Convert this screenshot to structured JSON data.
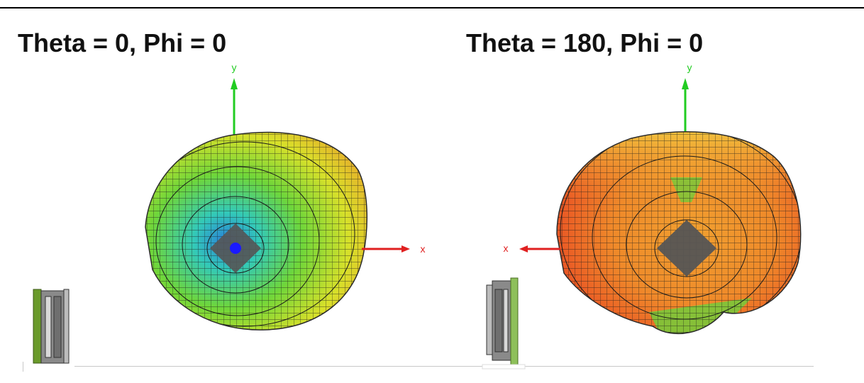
{
  "panels": [
    {
      "title": "Theta = 0, Phi = 0",
      "axes": {
        "y_label": "y",
        "x_label": "x",
        "x_direction": "right"
      },
      "colors": {
        "y_axis": "#22cc22",
        "x_axis": "#e02020",
        "center": "#1a1aff"
      }
    },
    {
      "title": "Theta = 180, Phi = 0",
      "axes": {
        "y_label": "y",
        "x_label": "x",
        "x_direction": "left"
      },
      "colors": {
        "y_axis": "#22cc22",
        "x_axis": "#e02020",
        "center": "#555555"
      }
    }
  ],
  "icons": [
    "antenna-board-side-view-icon",
    "antenna-board-side-view-icon"
  ]
}
